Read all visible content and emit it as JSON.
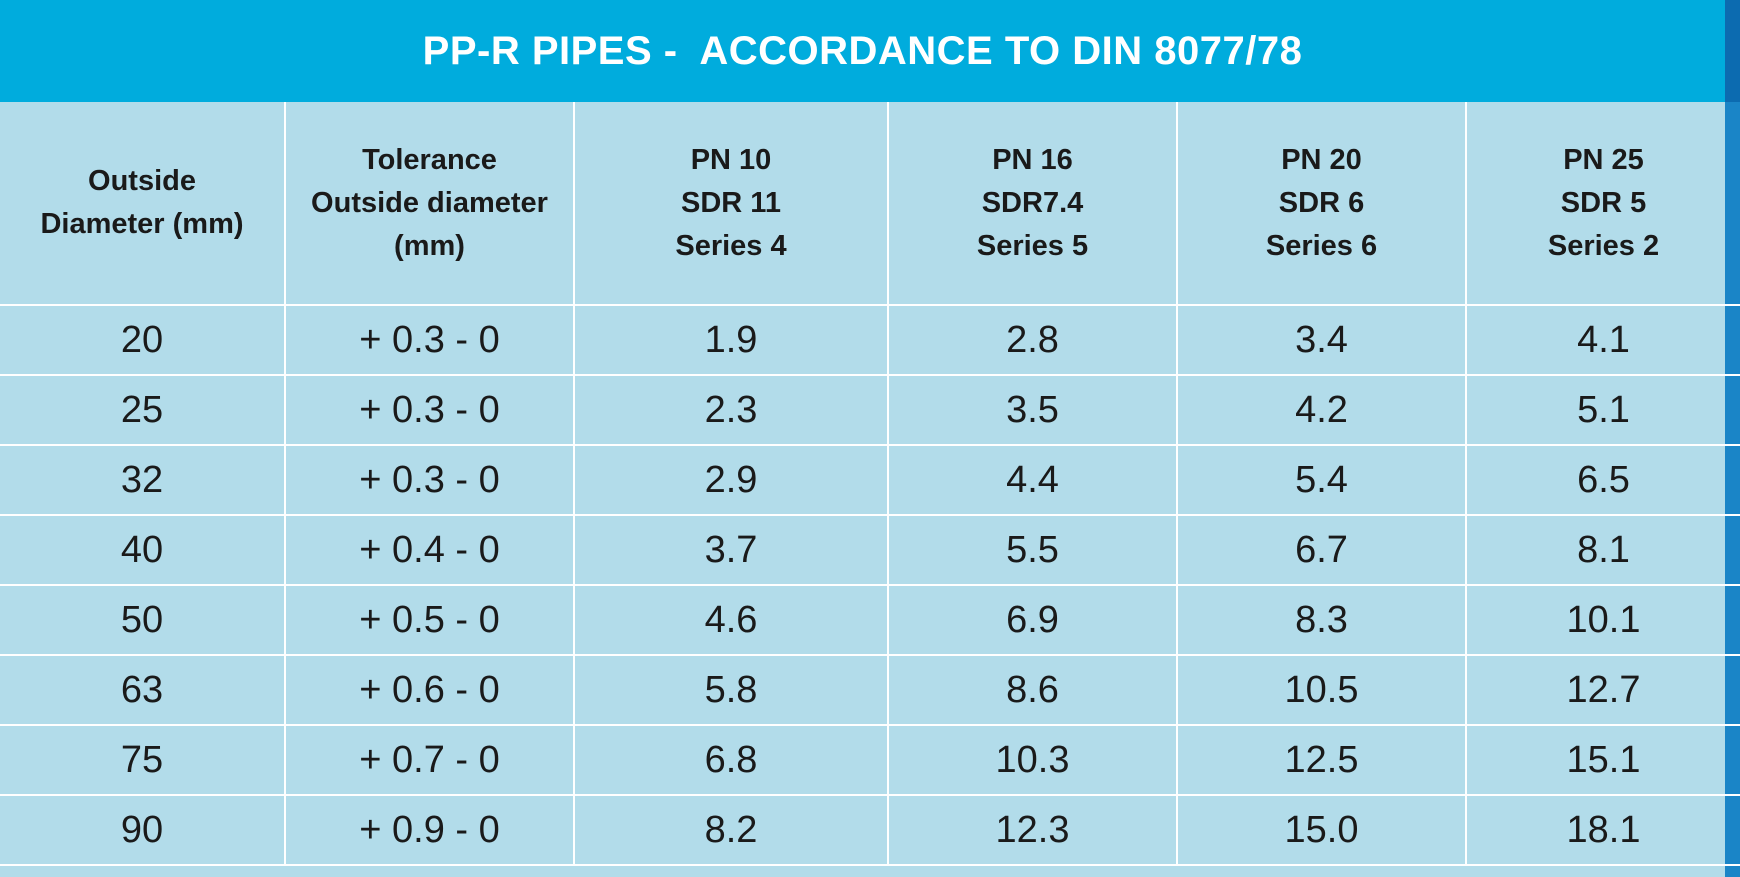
{
  "title": "PP-R PIPES -  ACCORDANCE TO DIN 8077/78",
  "headers": [
    [
      "Outside",
      "Diameter (mm)"
    ],
    [
      "Tolerance",
      "Outside diameter",
      "(mm)"
    ],
    [
      "PN 10",
      "SDR 11",
      "Series 4"
    ],
    [
      "PN 16",
      "SDR7.4",
      "Series 5"
    ],
    [
      "PN 20",
      "SDR 6",
      "Series 6"
    ],
    [
      "PN 25",
      "SDR 5",
      "Series 2"
    ]
  ],
  "rows": [
    [
      "20",
      "+ 0.3 - 0",
      "1.9",
      "2.8",
      "3.4",
      "4.1"
    ],
    [
      "25",
      "+ 0.3 - 0",
      "2.3",
      "3.5",
      "4.2",
      "5.1"
    ],
    [
      "32",
      "+ 0.3 - 0",
      "2.9",
      "4.4",
      "5.4",
      "6.5"
    ],
    [
      "40",
      "+ 0.4 - 0",
      "3.7",
      "5.5",
      "6.7",
      "8.1"
    ],
    [
      "50",
      "+ 0.5 - 0",
      "4.6",
      "6.9",
      "8.3",
      "10.1"
    ],
    [
      "63",
      "+ 0.6 - 0",
      "5.8",
      "8.6",
      "10.5",
      "12.7"
    ],
    [
      "75",
      "+ 0.7 - 0",
      "6.8",
      "10.3",
      "12.5",
      "15.1"
    ],
    [
      "90",
      "+ 0.9 - 0",
      "8.2",
      "12.3",
      "15.0",
      "18.1"
    ]
  ],
  "colors": {
    "title_bg": "#00acdd",
    "table_bg": "#b2dcea",
    "grid": "#ffffff",
    "side_strip": "#1a85c7"
  }
}
